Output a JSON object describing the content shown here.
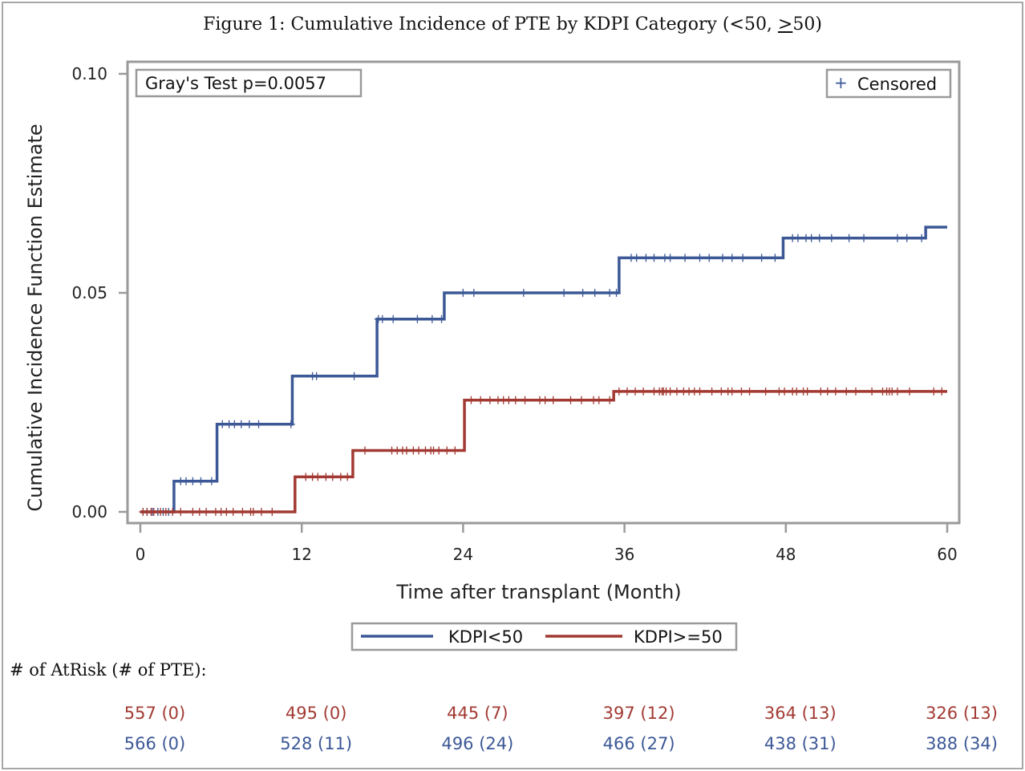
{
  "title": {
    "prefix": "Figure 1: Cumulative Incidence of PTE by KDPI Category (<50, ",
    "underlined": ">",
    "suffix": "50)"
  },
  "stat_box": "Gray's Test p=0.0057",
  "censor_legend": {
    "symbol": "+",
    "label": "Censored"
  },
  "colors": {
    "kdpi_lt50": "#3c5896",
    "kdpi_ge50": "#a23a33",
    "axis": "#9a9a9a"
  },
  "chart_data": {
    "type": "line",
    "step": true,
    "xlabel": "Time after transplant (Month)",
    "ylabel": "Cumulative Incidence Function Estimate",
    "xlim": [
      0,
      60
    ],
    "ylim": [
      0,
      0.1
    ],
    "xticks": [
      0,
      12,
      24,
      36,
      48,
      60
    ],
    "yticks": [
      0.0,
      0.05,
      0.1
    ],
    "ytick_labels": [
      "0.00",
      "0.05",
      "0.10"
    ],
    "grid": false,
    "legend_position": "bottom",
    "series": [
      {
        "name": "KDPI<50",
        "color": "#3c5896",
        "steps": [
          [
            0,
            0
          ],
          [
            2.5,
            0.007
          ],
          [
            5.7,
            0.02
          ],
          [
            11.3,
            0.031
          ],
          [
            17.6,
            0.044
          ],
          [
            22.6,
            0.05
          ],
          [
            35.6,
            0.058
          ],
          [
            47.8,
            0.0625
          ],
          [
            58.4,
            0.065
          ],
          [
            60,
            0.065
          ]
        ],
        "censored": [
          0.2,
          0.5,
          0.9,
          1.3,
          1.7,
          2.1,
          3.0,
          3.4,
          3.9,
          4.5,
          5.3,
          6.1,
          6.6,
          7.0,
          7.5,
          8.1,
          8.8,
          11.2,
          12.8,
          13.1,
          15.9,
          17.7,
          18.0,
          18.8,
          20.6,
          21.7,
          22.4,
          24.0,
          24.8,
          28.5,
          31.5,
          32.9,
          33.8,
          34.9,
          35.4,
          36.5,
          36.9,
          37.6,
          38.2,
          39.0,
          39.4,
          40.5,
          41.6,
          42.3,
          43.3,
          44.0,
          44.8,
          46.2,
          47.2,
          48.5,
          48.9,
          49.5,
          49.9,
          50.5,
          51.4,
          52.7,
          53.8,
          56.3,
          57.0,
          58.1
        ]
      },
      {
        "name": "KDPI>=50",
        "color": "#a23a33",
        "steps": [
          [
            0,
            0
          ],
          [
            11.5,
            0.008
          ],
          [
            15.8,
            0.014
          ],
          [
            24.1,
            0.0255
          ],
          [
            35.2,
            0.0275
          ],
          [
            60,
            0.0275
          ]
        ],
        "censored": [
          0.2,
          0.5,
          0.8,
          1.0,
          1.5,
          1.9,
          2.4,
          3.0,
          3.9,
          4.4,
          4.9,
          5.6,
          6.0,
          6.4,
          6.9,
          7.6,
          8.2,
          8.4,
          9.0,
          9.8,
          12.3,
          12.8,
          13.2,
          13.8,
          14.3,
          14.9,
          15.4,
          16.7,
          18.7,
          19.1,
          19.5,
          19.8,
          20.3,
          20.7,
          21.2,
          21.6,
          21.8,
          22.2,
          22.8,
          23.4,
          24.6,
          25.3,
          26.0,
          26.6,
          27.0,
          27.4,
          27.9,
          28.6,
          29.7,
          30.1,
          30.7,
          32.0,
          32.8,
          33.7,
          34.1,
          34.9,
          35.6,
          36.2,
          36.8,
          37.4,
          38.2,
          38.6,
          38.8,
          38.9,
          39.1,
          39.4,
          39.9,
          40.4,
          40.8,
          41.2,
          41.6,
          42.5,
          43.2,
          43.7,
          44.0,
          44.7,
          45.3,
          46.5,
          47.5,
          47.9,
          48.5,
          48.8,
          49.3,
          49.6,
          50.6,
          51.1,
          51.7,
          52.5,
          53.2,
          54.4,
          55.2,
          55.5,
          55.7,
          55.9,
          56.3,
          57.2,
          59.0,
          59.6
        ]
      }
    ]
  },
  "risk_table": {
    "header": "# of AtRisk (# of PTE):",
    "rows": [
      {
        "name": "KDPI>=50",
        "color": "#a23a33",
        "values": [
          "557 (0)",
          "495 (0)",
          "445 (7)",
          "397 (12)",
          "364 (13)",
          "326 (13)"
        ]
      },
      {
        "name": "KDPI<50",
        "color": "#3c5896",
        "values": [
          "566 (0)",
          "528 (11)",
          "496 (24)",
          "466 (27)",
          "438 (31)",
          "388 (34)"
        ]
      }
    ]
  }
}
